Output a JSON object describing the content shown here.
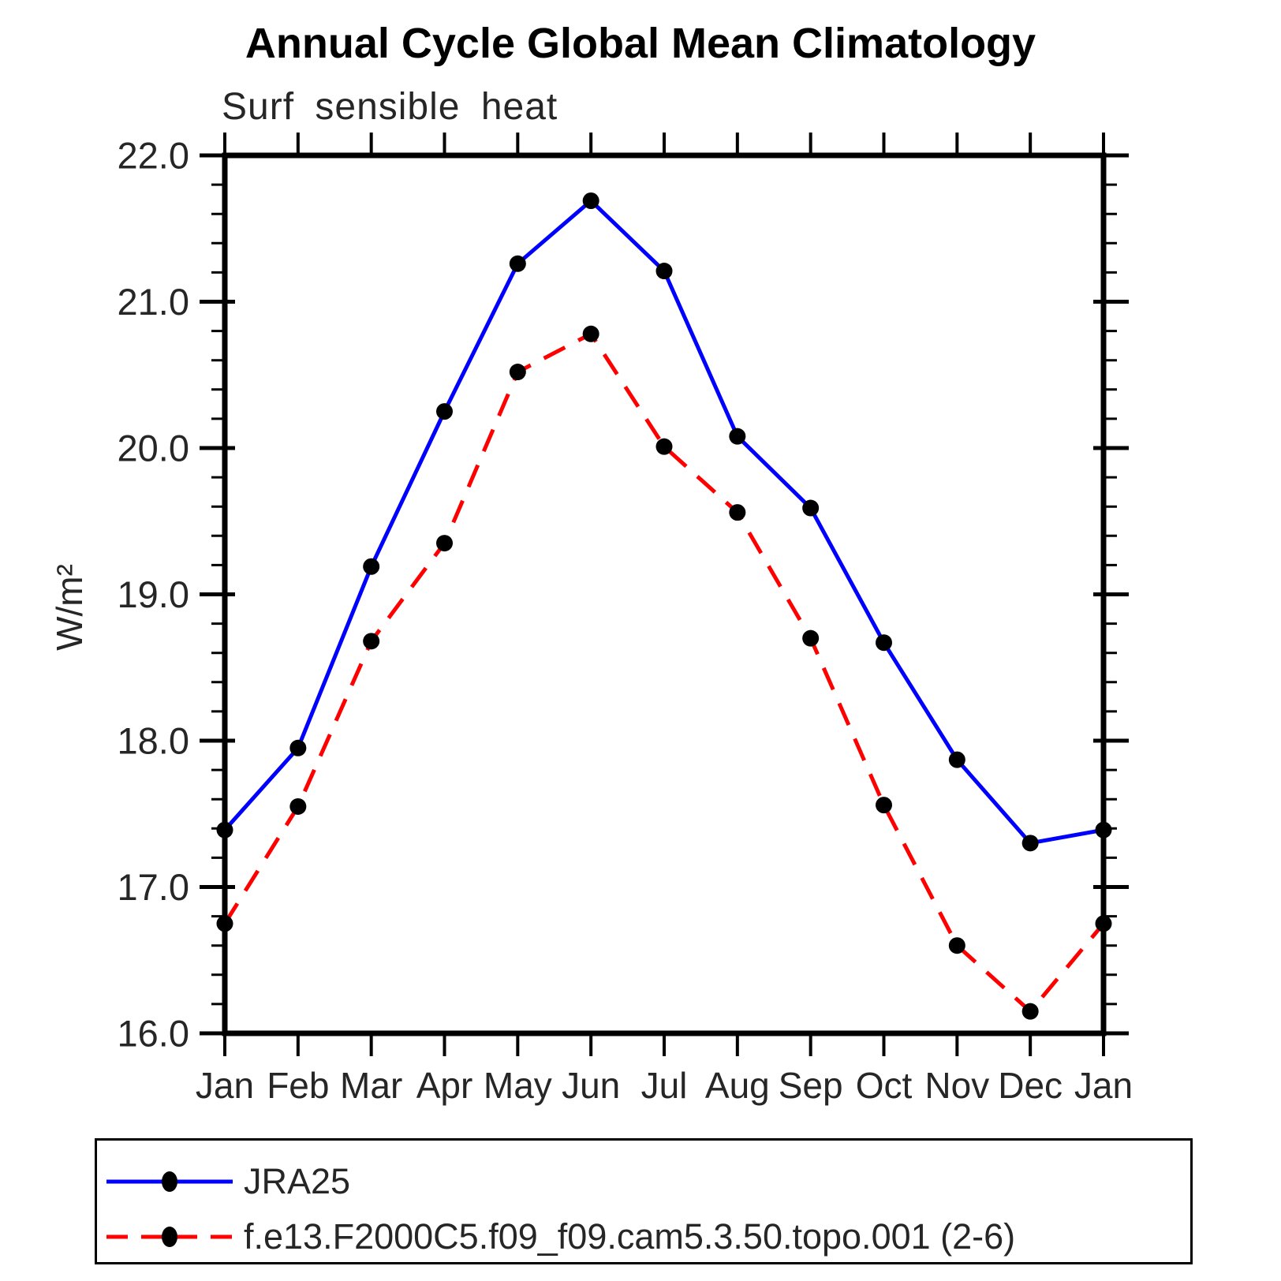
{
  "chart_data": {
    "type": "line",
    "title": "Annual Cycle Global Mean Climatology",
    "subtitle": "Surf sensible heat",
    "ylabel": "W/m²",
    "xlabel": "",
    "x_tick_labels": [
      "Jan",
      "Feb",
      "Mar",
      "Apr",
      "May",
      "Jun",
      "Jul",
      "Aug",
      "Sep",
      "Oct",
      "Nov",
      "Dec",
      "Jan"
    ],
    "ylim": [
      16.0,
      22.0
    ],
    "y_major_tick_values": [
      16,
      17,
      18,
      19,
      20,
      21,
      22
    ],
    "y_major_tick_labels": [
      "16.0",
      "17.0",
      "18.0",
      "19.0",
      "20.0",
      "21.0",
      "22.0"
    ],
    "y_minor_tick_step": 0.2,
    "grid": false,
    "legend_position": "bottom-left-box",
    "series": [
      {
        "name": "JRA25",
        "line_color": "#0000ff",
        "line_style": "solid",
        "marker": "filled-circle",
        "marker_color": "#000000",
        "values": [
          17.39,
          17.95,
          19.19,
          20.25,
          21.26,
          21.69,
          21.21,
          20.08,
          19.59,
          18.67,
          17.87,
          17.3,
          17.39
        ]
      },
      {
        "name": "f.e13.F2000C5.f09_f09.cam5.3.50.topo.001 (2-6)",
        "line_color": "#ff0000",
        "line_style": "dashed",
        "marker": "filled-circle",
        "marker_color": "#000000",
        "values": [
          16.75,
          17.55,
          18.68,
          19.35,
          20.52,
          20.78,
          20.01,
          19.56,
          18.7,
          17.56,
          16.6,
          16.15,
          16.75
        ]
      }
    ],
    "colors": {
      "axis": "#000000",
      "text": "#262626",
      "background": "#ffffff"
    }
  }
}
